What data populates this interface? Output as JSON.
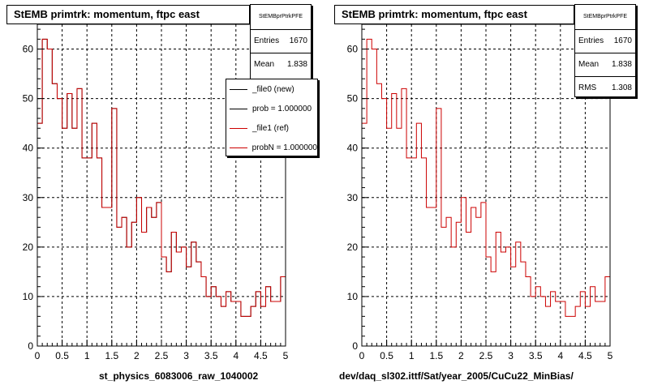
{
  "chart_data": [
    {
      "type": "bar",
      "title": "StEMB primtrk: momentum, ftpc east",
      "xlabel": "st_physics_6083006_raw_1040002",
      "xlim": [
        0,
        5
      ],
      "ylim": [
        0,
        65
      ],
      "xticks": [
        "0",
        "0.5",
        "1",
        "1.5",
        "2",
        "2.5",
        "3",
        "3.5",
        "4",
        "4.5",
        "5"
      ],
      "yticks": [
        "0",
        "10",
        "20",
        "30",
        "40",
        "50",
        "60"
      ],
      "grid": true,
      "bin_width": 0.1,
      "stats": {
        "name": "StEMBprPtrkPFE",
        "entries_label": "Entries",
        "entries": "1670",
        "mean_label": "Mean",
        "mean": "1.838"
      },
      "legend": [
        {
          "label": "_file0 (new)",
          "color": "#000000"
        },
        {
          "label": "prob = 1.000000",
          "color": "#000000"
        },
        {
          "label": "_file1 (ref)",
          "color": "#cc0000"
        },
        {
          "label": "probN = 1.000000",
          "color": "#cc0000"
        }
      ],
      "series": [
        {
          "name": "_file0 (new)",
          "color": "#000000",
          "values": [
            45,
            62,
            60,
            53,
            50,
            44,
            51,
            44,
            52,
            38,
            38,
            45,
            38,
            28,
            28,
            48,
            24,
            26,
            20,
            25,
            30,
            23,
            28,
            26,
            29,
            18,
            15,
            23,
            19,
            20,
            16,
            21,
            17,
            14,
            10,
            12,
            10,
            8,
            11,
            9,
            9,
            6,
            6,
            8,
            11,
            8,
            12,
            9,
            9,
            14
          ]
        },
        {
          "name": "_file1 (ref)",
          "color": "#cc0000",
          "values": [
            45,
            62,
            60,
            53,
            50,
            44,
            51,
            44,
            52,
            38,
            38,
            45,
            38,
            28,
            28,
            48,
            24,
            26,
            20,
            25,
            30,
            23,
            28,
            26,
            29,
            18,
            15,
            23,
            19,
            20,
            16,
            21,
            17,
            14,
            10,
            12,
            10,
            8,
            11,
            9,
            9,
            6,
            6,
            8,
            11,
            8,
            12,
            9,
            9,
            14
          ]
        }
      ]
    },
    {
      "type": "bar",
      "title": "StEMB primtrk: momentum, ftpc east",
      "xlabel": "dev/daq_sl302.ittf/Sat/year_2005/CuCu22_MinBias/",
      "xlim": [
        0,
        5
      ],
      "ylim": [
        0,
        65
      ],
      "xticks": [
        "0",
        "0.5",
        "1",
        "1.5",
        "2",
        "2.5",
        "3",
        "3.5",
        "4",
        "4.5",
        "5"
      ],
      "yticks": [
        "0",
        "10",
        "20",
        "30",
        "40",
        "50",
        "60"
      ],
      "grid": true,
      "bin_width": 0.1,
      "stats": {
        "name": "StEMBprPtrkPFE",
        "entries_label": "Entries",
        "entries": "1670",
        "mean_label": "Mean",
        "mean": "1.838",
        "rms_label": "RMS",
        "rms": "1.308"
      },
      "series": [
        {
          "color": "#cc0000",
          "values": [
            45,
            62,
            60,
            53,
            50,
            44,
            51,
            44,
            52,
            38,
            38,
            45,
            38,
            28,
            28,
            48,
            24,
            26,
            20,
            25,
            30,
            23,
            28,
            26,
            29,
            18,
            15,
            23,
            19,
            20,
            16,
            21,
            17,
            14,
            10,
            12,
            10,
            8,
            11,
            9,
            9,
            6,
            6,
            8,
            11,
            8,
            12,
            9,
            9,
            14
          ]
        }
      ]
    }
  ]
}
